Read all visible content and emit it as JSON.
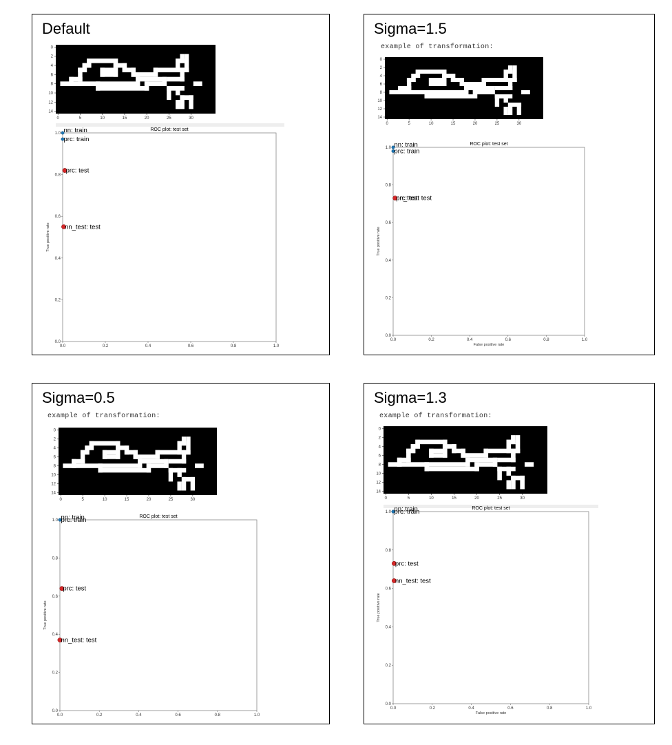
{
  "panels": [
    {
      "title": "Default",
      "caption": "",
      "digit": {
        "xticks": [
          "0",
          "5",
          "10",
          "15",
          "20",
          "25",
          "30"
        ],
        "yticks": [
          "0",
          "2",
          "4",
          "6",
          "8",
          "10",
          "12",
          "14"
        ]
      },
      "roc": {
        "title": "ROC plot: test set",
        "xlabel": "",
        "ylabel": "True positive rate",
        "xticks": [
          "0.0",
          "0.2",
          "0.4",
          "0.6",
          "0.8",
          "1.0"
        ],
        "yticks": [
          "0.0",
          "0.2",
          "0.4",
          "0.6",
          "0.8",
          "1.0"
        ]
      }
    },
    {
      "title": "Sigma=1.5",
      "caption": "example of transformation:",
      "digit": {
        "xticks": [
          "0",
          "5",
          "10",
          "15",
          "20",
          "25",
          "30"
        ],
        "yticks": [
          "0",
          "2",
          "4",
          "6",
          "8",
          "10",
          "12",
          "14"
        ]
      },
      "roc": {
        "title": "ROC plot: test set",
        "xlabel": "False positive rate",
        "ylabel": "True positive rate",
        "xticks": [
          "0.0",
          "0.2",
          "0.4",
          "0.6",
          "0.8",
          "1.0"
        ],
        "yticks": [
          "0.0",
          "0.2",
          "0.4",
          "0.6",
          "0.8",
          "1.0"
        ]
      }
    },
    {
      "title": "Sigma=0.5",
      "caption": "example of transformation:",
      "digit": {
        "xticks": [
          "0",
          "5",
          "10",
          "15",
          "20",
          "25",
          "30"
        ],
        "yticks": [
          "0",
          "2",
          "4",
          "6",
          "8",
          "10",
          "12",
          "14"
        ]
      },
      "roc": {
        "title": "ROC plot: test set",
        "xlabel": "",
        "ylabel": "True positive rate",
        "xticks": [
          "0.0",
          "0.2",
          "0.4",
          "0.6",
          "0.8",
          "1.0"
        ],
        "yticks": [
          "0.0",
          "0.2",
          "0.4",
          "0.6",
          "0.8",
          "1.0"
        ]
      }
    },
    {
      "title": "Sigma=1.3",
      "caption": "example of transformation:",
      "digit": {
        "xticks": [
          "0",
          "5",
          "10",
          "15",
          "20",
          "25",
          "30"
        ],
        "yticks": [
          "0",
          "2",
          "4",
          "6",
          "8",
          "10",
          "12",
          "14"
        ]
      },
      "roc": {
        "title": "ROC plot: test set",
        "xlabel": "False positive rate",
        "ylabel": "True positive rate",
        "xticks": [
          "0.0",
          "0.2",
          "0.4",
          "0.6",
          "0.8",
          "1.0"
        ],
        "yticks": [
          "0.0",
          "0.2",
          "0.4",
          "0.6",
          "0.8",
          "1.0"
        ]
      }
    }
  ],
  "chart_data": [
    {
      "type": "scatter",
      "panel": "Default",
      "title": "ROC plot: test set",
      "xlabel": "",
      "ylabel": "True positive rate",
      "xlim": [
        0,
        1
      ],
      "ylim": [
        0,
        1
      ],
      "points": [
        {
          "label": "nn: train",
          "x": 0.0,
          "y": 1.0,
          "color": "#1f77b4"
        },
        {
          "label": "prc: train",
          "x": 0.0,
          "y": 0.97,
          "color": "#1f77b4"
        },
        {
          "label": "prc: test",
          "x": 0.01,
          "y": 0.82,
          "color": "#d62728"
        },
        {
          "label": "nn_test: test",
          "x": 0.005,
          "y": 0.55,
          "color": "#d62728"
        }
      ]
    },
    {
      "type": "scatter",
      "panel": "Sigma=1.5",
      "title": "ROC plot: test set",
      "xlabel": "False positive rate",
      "ylabel": "True positive rate",
      "xlim": [
        0,
        1
      ],
      "ylim": [
        0,
        1
      ],
      "points": [
        {
          "label": "nn: train",
          "x": 0.0,
          "y": 1.0,
          "color": "#1f77b4"
        },
        {
          "label": "prc: train",
          "x": 0.0,
          "y": 0.98,
          "color": "#1f77b4"
        },
        {
          "label": "nn_test: test",
          "x": 0.01,
          "y": 0.73,
          "color": "#d62728"
        },
        {
          "label": "prc: test",
          "x": 0.01,
          "y": 0.73,
          "color": "#d62728"
        }
      ]
    },
    {
      "type": "scatter",
      "panel": "Sigma=0.5",
      "title": "ROC plot: test set",
      "xlabel": "",
      "ylabel": "True positive rate",
      "xlim": [
        0,
        1
      ],
      "ylim": [
        0,
        1
      ],
      "points": [
        {
          "label": "nn: train",
          "x": 0.0,
          "y": 1.0,
          "color": "#1f77b4"
        },
        {
          "label": "prc: train",
          "x": 0.0,
          "y": 1.0,
          "color": "#1f77b4"
        },
        {
          "label": "prc: test",
          "x": 0.01,
          "y": 0.64,
          "color": "#d62728"
        },
        {
          "label": "nn_test: test",
          "x": 0.0,
          "y": 0.37,
          "color": "#d62728"
        }
      ]
    },
    {
      "type": "scatter",
      "panel": "Sigma=1.3",
      "title": "ROC plot: test set",
      "xlabel": "False positive rate",
      "ylabel": "True positive rate",
      "xlim": [
        0,
        1
      ],
      "ylim": [
        0,
        1
      ],
      "points": [
        {
          "label": "nn: train",
          "x": 0.0,
          "y": 1.0,
          "color": "#1f77b4"
        },
        {
          "label": "prc: train",
          "x": 0.0,
          "y": 1.0,
          "color": "#1f77b4"
        },
        {
          "label": "prc: test",
          "x": 0.005,
          "y": 0.73,
          "color": "#d62728"
        },
        {
          "label": "nn_test: test",
          "x": 0.005,
          "y": 0.64,
          "color": "#d62728"
        }
      ]
    }
  ]
}
